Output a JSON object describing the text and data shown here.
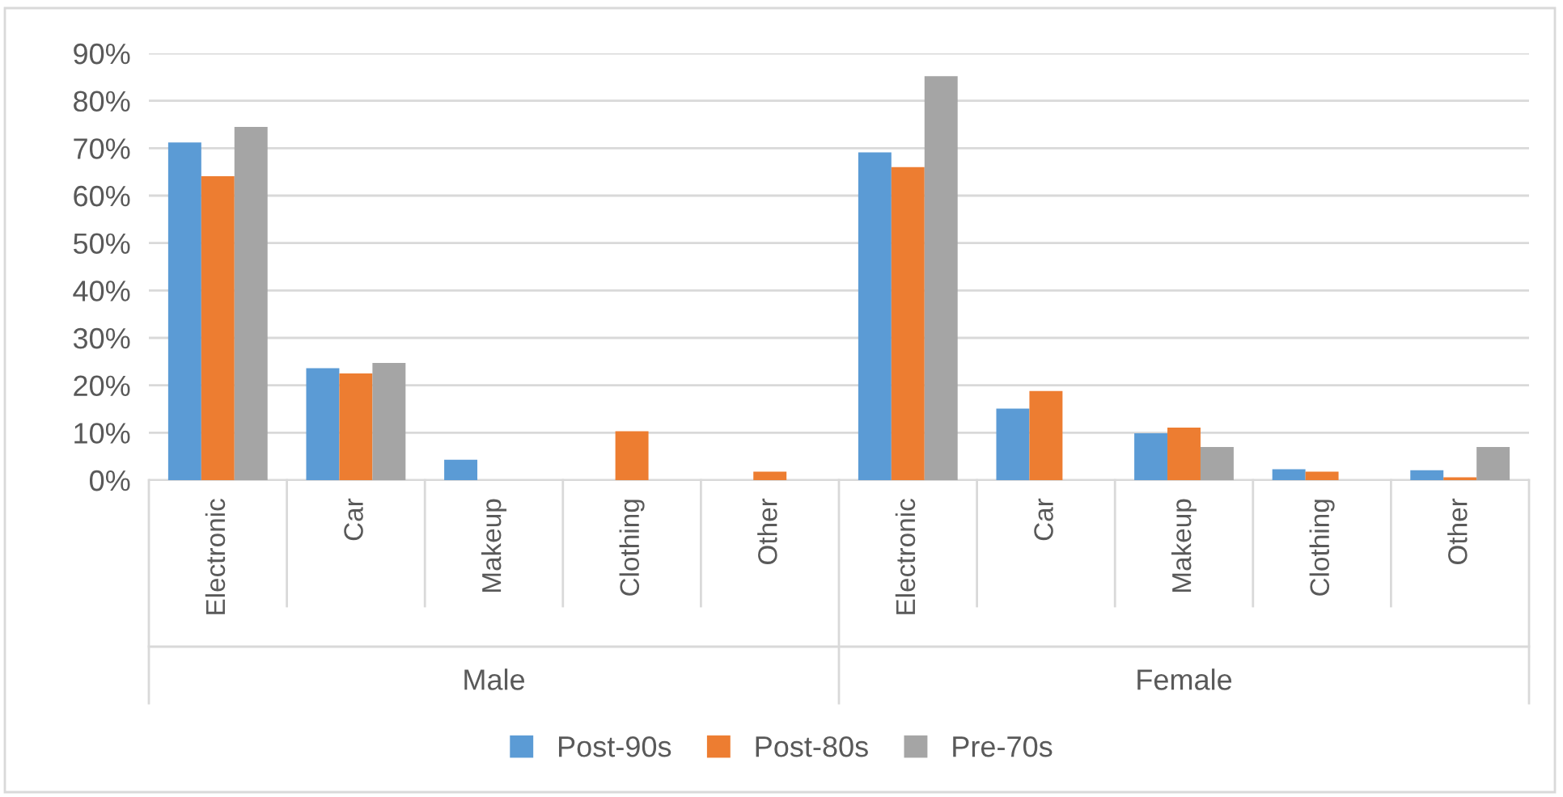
{
  "chart_data": {
    "type": "bar",
    "categories": [
      "Electronic",
      "Car",
      "Makeup",
      "Clothing",
      "Other",
      "Electronic",
      "Car",
      "Makeup",
      "Clothing",
      "Other"
    ],
    "series": [
      {
        "name": "Post-90s",
        "color": "#5b9bd5",
        "values": [
          71.2,
          23.6,
          4.3,
          0,
          0,
          69.1,
          15.1,
          9.9,
          2.3,
          2.1
        ]
      },
      {
        "name": "Post-80s",
        "color": "#ed7d31",
        "values": [
          64.1,
          22.5,
          0,
          10.3,
          1.8,
          66.0,
          18.8,
          11.1,
          1.8,
          0.6
        ]
      },
      {
        "name": "Pre-70s",
        "color": "#a5a5a5",
        "values": [
          74.5,
          24.7,
          0,
          0,
          0,
          85.2,
          0,
          7.0,
          0,
          7.0
        ]
      }
    ],
    "annotations": [
      "Male",
      "Female"
    ],
    "ylim": [
      0,
      90
    ],
    "yticks": [
      {
        "value": 0,
        "label": "0%"
      },
      {
        "value": 10,
        "label": "10%"
      },
      {
        "value": 20,
        "label": "20%"
      },
      {
        "value": 30,
        "label": "30%"
      },
      {
        "value": 40,
        "label": "40%"
      },
      {
        "value": 50,
        "label": "50%"
      },
      {
        "value": 60,
        "label": "60%"
      },
      {
        "value": 70,
        "label": "70%"
      },
      {
        "value": 80,
        "label": "80%"
      },
      {
        "value": 90,
        "label": "90%"
      }
    ],
    "grid": "y",
    "legend": "bottom"
  }
}
